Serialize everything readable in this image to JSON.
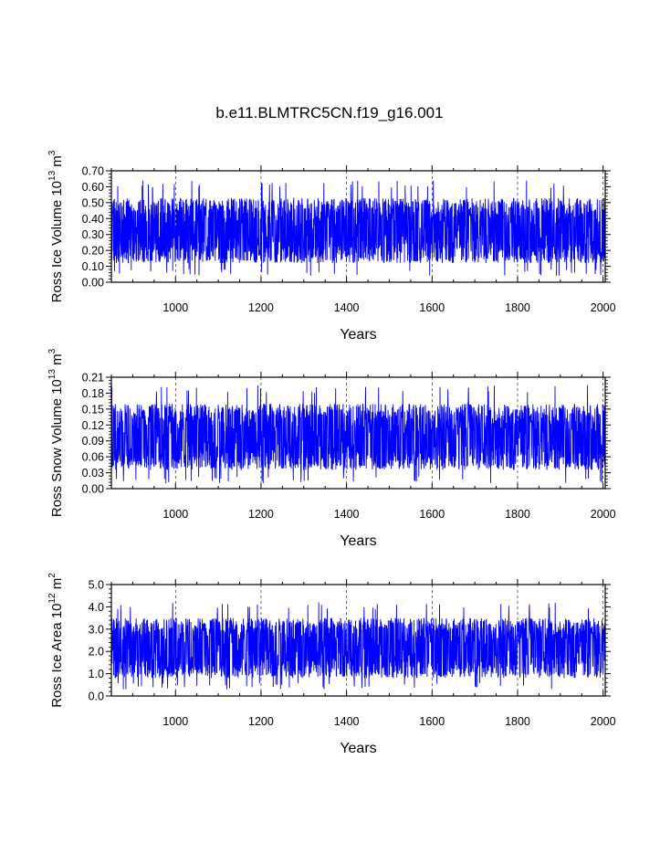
{
  "title": "b.e11.BLMTRC5CN.f19_g16.001",
  "chart_data": [
    {
      "type": "line",
      "xlabel": "Years",
      "ylabel": {
        "prefix": "Ross Ice Volume 10",
        "exp1": "13",
        "mid": " m",
        "exp2": "3"
      },
      "xlim": [
        850,
        2005
      ],
      "ylim": [
        0.0,
        0.7
      ],
      "xticks": [
        1000,
        1200,
        1400,
        1600,
        1800,
        2000
      ],
      "yticks": [
        0.0,
        0.1,
        0.2,
        0.3,
        0.4,
        0.5,
        0.6,
        0.7
      ],
      "ytick_labels": [
        "0.00",
        "0.10",
        "0.20",
        "0.30",
        "0.40",
        "0.50",
        "0.60",
        "0.70"
      ],
      "series": [
        {
          "color": "#0000ff",
          "mean": 0.32,
          "typical_min": 0.12,
          "typical_max": 0.53,
          "abs_min": 0.04,
          "abs_max": 0.64
        }
      ],
      "grid": "vertical dashed at x ticks"
    },
    {
      "type": "line",
      "xlabel": "Years",
      "ylabel": {
        "prefix": "Ross Snow Volume 10",
        "exp1": "13",
        "mid": " m",
        "exp2": "3"
      },
      "xlim": [
        850,
        2005
      ],
      "ylim": [
        0.0,
        0.21
      ],
      "xticks": [
        1000,
        1200,
        1400,
        1600,
        1800,
        2000
      ],
      "yticks": [
        0.0,
        0.03,
        0.06,
        0.09,
        0.12,
        0.15,
        0.18,
        0.21
      ],
      "ytick_labels": [
        "0.00",
        "0.03",
        "0.06",
        "0.09",
        "0.12",
        "0.15",
        "0.18",
        "0.21"
      ],
      "series": [
        {
          "color": "#0000ff",
          "mean": 0.095,
          "typical_min": 0.035,
          "typical_max": 0.16,
          "abs_min": 0.01,
          "abs_max": 0.195
        }
      ],
      "grid": "vertical dashed at x ticks"
    },
    {
      "type": "line",
      "xlabel": "Years",
      "ylabel": {
        "prefix": "Ross Ice Area 10",
        "exp1": "12",
        "mid": " m",
        "exp2": "2"
      },
      "xlim": [
        850,
        2005
      ],
      "ylim": [
        0.0,
        5.0
      ],
      "xticks": [
        1000,
        1200,
        1400,
        1600,
        1800,
        2000
      ],
      "yticks": [
        0.0,
        1.0,
        2.0,
        3.0,
        4.0,
        5.0
      ],
      "ytick_labels": [
        "0.0",
        "1.0",
        "2.0",
        "3.0",
        "4.0",
        "5.0"
      ],
      "series": [
        {
          "color": "#0000ff",
          "mean": 2.2,
          "typical_min": 0.8,
          "typical_max": 3.5,
          "abs_min": 0.3,
          "abs_max": 4.2
        }
      ],
      "grid": "vertical dashed at x ticks"
    }
  ]
}
